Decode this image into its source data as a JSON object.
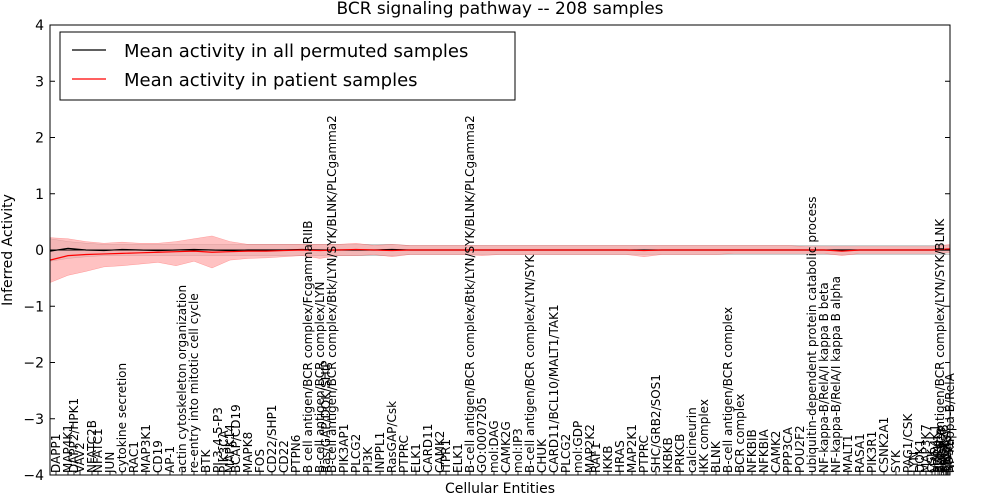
{
  "chart_data": {
    "type": "line",
    "title": "BCR signaling pathway -- 208 samples",
    "xlabel": "Cellular Entities",
    "ylabel": "Inferred Activity",
    "ylim": [
      -4,
      4
    ],
    "yticks": [
      -4,
      -3,
      -2,
      -1,
      0,
      1,
      2,
      3,
      4
    ],
    "grid": false,
    "legend_position": "top-left",
    "colors": {
      "permuted": "#000000",
      "patient": "#ff0000",
      "patient_band": "#ff9999",
      "permuted_band": "#bfbfbf"
    },
    "x_range": [
      0,
      150
    ],
    "tick_labels": [
      {
        "x": 1,
        "label": "DAPP1"
      },
      {
        "x": 3,
        "label": "MAP4K1"
      },
      {
        "x": 4,
        "label": "DAPP2/HPK1"
      },
      {
        "x": 5,
        "label": "VAV2"
      },
      {
        "x": 7,
        "label": "NFATC2B"
      },
      {
        "x": 8,
        "label": "NFATC1"
      },
      {
        "x": 10,
        "label": "JUN"
      },
      {
        "x": 12,
        "label": "cytokine secretion"
      },
      {
        "x": 14,
        "label": "RAC1"
      },
      {
        "x": 16,
        "label": "MAP3K1"
      },
      {
        "x": 18,
        "label": "CD19"
      },
      {
        "x": 20,
        "label": "AP-1"
      },
      {
        "x": 22,
        "label": "actin cytoskeleton organization"
      },
      {
        "x": 24,
        "label": "re-entry into mitotic cell cycle"
      },
      {
        "x": 26,
        "label": "BTK"
      },
      {
        "x": 28,
        "label": "PI-3-4-5-P3"
      },
      {
        "x": 29,
        "label": "PIK3CA"
      },
      {
        "x": 30,
        "label": "MAPK14"
      },
      {
        "x": 31,
        "label": "BCAP/CD19"
      },
      {
        "x": 33,
        "label": "MAPK8"
      },
      {
        "x": 35,
        "label": "FOS"
      },
      {
        "x": 37,
        "label": "CD22/SHP1"
      },
      {
        "x": 39,
        "label": "CD22"
      },
      {
        "x": 41,
        "label": "PTPN6"
      },
      {
        "x": 43,
        "label": "B cell antigen/BCR complex/FcgammaRIIB"
      },
      {
        "x": 45,
        "label": "B-cell antigen/BCR complex/LYN"
      },
      {
        "x": 46,
        "label": "Ras/GAP/DOK/SHIP"
      },
      {
        "x": 47,
        "label": "B-cell antigen/BCR complex/Btk/LYN/SYK/BLNK/PLCgamma2"
      },
      {
        "x": 49,
        "label": "PIK3AP1"
      },
      {
        "x": 51,
        "label": "PLCG2"
      },
      {
        "x": 53,
        "label": "PI3K"
      },
      {
        "x": 55,
        "label": "INPPL1"
      },
      {
        "x": 57,
        "label": "RasGAP/Csk"
      },
      {
        "x": 59,
        "label": "PTPRC"
      },
      {
        "x": 61,
        "label": "ELK1"
      },
      {
        "x": 63,
        "label": "CARD11"
      },
      {
        "x": 65,
        "label": "CAMK2"
      },
      {
        "x": 66,
        "label": "ITPR1"
      },
      {
        "x": 68,
        "label": "ELK1"
      },
      {
        "x": 70,
        "label": "B-cell antigen/BCR complex/Btk/LYN/SYK/BLNK/PLCgamma2"
      },
      {
        "x": 72,
        "label": "GO:0007205"
      },
      {
        "x": 74,
        "label": "mol:DAG"
      },
      {
        "x": 76,
        "label": "CAMK2G"
      },
      {
        "x": 78,
        "label": "mol:IP3"
      },
      {
        "x": 80,
        "label": "B-cell antigen/BCR complex/LYN/SYK"
      },
      {
        "x": 82,
        "label": "CHUK"
      },
      {
        "x": 84,
        "label": "CARD11/BCL10/MALT1/TAK1"
      },
      {
        "x": 86,
        "label": "PLCG2"
      },
      {
        "x": 88,
        "label": "mol:GDP"
      },
      {
        "x": 90,
        "label": "MAP2K2"
      },
      {
        "x": 91,
        "label": "RAF1"
      },
      {
        "x": 93,
        "label": "IKKB"
      },
      {
        "x": 95,
        "label": "HRAS"
      },
      {
        "x": 97,
        "label": "MAP2K1"
      },
      {
        "x": 99,
        "label": "PTPRC"
      },
      {
        "x": 101,
        "label": "SHC/GRB2/SOS1"
      },
      {
        "x": 103,
        "label": "IKBKB"
      },
      {
        "x": 105,
        "label": "PRKCB"
      },
      {
        "x": 107,
        "label": "calcineurin"
      },
      {
        "x": 109,
        "label": "IKK complex"
      },
      {
        "x": 111,
        "label": "BLNK"
      },
      {
        "x": 113,
        "label": "B-cell antigen/BCR complex"
      },
      {
        "x": 115,
        "label": "BCR complex"
      },
      {
        "x": 117,
        "label": "NFKBIB"
      },
      {
        "x": 119,
        "label": "NFKBIA"
      },
      {
        "x": 121,
        "label": "CAMK2"
      },
      {
        "x": 123,
        "label": "PPP3CA"
      },
      {
        "x": 125,
        "label": "POU2F2"
      },
      {
        "x": 127,
        "label": "ubiquitin-dependent protein catabolic process"
      },
      {
        "x": 129,
        "label": "NF-kappa-B/RelA/I kappa B beta"
      },
      {
        "x": 131,
        "label": "NF-kappa-B/RelA/I kappa B alpha"
      },
      {
        "x": 133,
        "label": "MALT1"
      },
      {
        "x": 135,
        "label": "RASA1"
      },
      {
        "x": 137,
        "label": "PIK3R1"
      },
      {
        "x": 139,
        "label": "CSNK2A1"
      },
      {
        "x": 141,
        "label": "SYK"
      },
      {
        "x": 143,
        "label": "PAG1/CSK"
      },
      {
        "x": 144,
        "label": "LYN"
      },
      {
        "x": 145,
        "label": "DOK1"
      },
      {
        "x": 146,
        "label": "MAP3K7"
      },
      {
        "x": 147,
        "label": "CSK"
      },
      {
        "x": 147.5,
        "label": "MAP4K1"
      },
      {
        "x": 148,
        "label": "PDPK1"
      },
      {
        "x": 148.3,
        "label": "B-cell antigen/BCR complex/LYN/SYK/BLNK"
      },
      {
        "x": 148.6,
        "label": "PPP3CB"
      },
      {
        "x": 148.9,
        "label": "FCGR2B"
      },
      {
        "x": 149.2,
        "label": "SHC1"
      },
      {
        "x": 149.4,
        "label": "PIK3CA"
      },
      {
        "x": 149.6,
        "label": "TRAF6"
      },
      {
        "x": 149.8,
        "label": "SOS1"
      },
      {
        "x": 150,
        "label": "NF-kappa-B/RelA"
      }
    ],
    "series": [
      {
        "name": "Mean activity in all permuted samples",
        "color": "#000000",
        "x": [
          0,
          3,
          6,
          9,
          12,
          15,
          18,
          21,
          24,
          27,
          30,
          33,
          36,
          39,
          42,
          45,
          48,
          51,
          54,
          57,
          60,
          63,
          66,
          69,
          72,
          75,
          78,
          81,
          84,
          87,
          90,
          93,
          96,
          99,
          102,
          105,
          108,
          111,
          114,
          117,
          120,
          123,
          126,
          129,
          132,
          135,
          138,
          141,
          144,
          147,
          150
        ],
        "values": [
          -0.02,
          0.03,
          0.0,
          -0.01,
          0.01,
          0.0,
          -0.01,
          0.0,
          0.01,
          0.0,
          -0.01,
          0.0,
          0.0,
          0.0,
          0.01,
          0.0,
          0.0,
          0.0,
          0.0,
          0.01,
          0.0,
          0.0,
          0.0,
          0.0,
          0.0,
          0.0,
          0.0,
          0.0,
          0.0,
          0.0,
          0.0,
          0.0,
          0.0,
          0.0,
          0.0,
          0.0,
          0.0,
          0.0,
          0.0,
          0.0,
          0.0,
          0.0,
          0.0,
          0.0,
          0.0,
          0.0,
          0.0,
          0.0,
          0.0,
          0.0,
          0.0
        ],
        "band_low": [
          -0.2,
          -0.15,
          -0.12,
          -0.1,
          -0.1,
          -0.1,
          -0.1,
          -0.1,
          -0.1,
          -0.1,
          -0.1,
          -0.1,
          -0.1,
          -0.1,
          -0.1,
          -0.1,
          -0.1,
          -0.1,
          -0.1,
          -0.1,
          -0.08,
          -0.08,
          -0.08,
          -0.08,
          -0.08,
          -0.08,
          -0.08,
          -0.08,
          -0.08,
          -0.08,
          -0.08,
          -0.08,
          -0.08,
          -0.08,
          -0.08,
          -0.08,
          -0.08,
          -0.08,
          -0.08,
          -0.08,
          -0.08,
          -0.08,
          -0.08,
          -0.08,
          -0.08,
          -0.08,
          -0.08,
          -0.08,
          -0.08,
          -0.08,
          -0.08
        ],
        "band_high": [
          0.2,
          0.15,
          0.12,
          0.1,
          0.1,
          0.1,
          0.1,
          0.1,
          0.1,
          0.1,
          0.1,
          0.1,
          0.1,
          0.1,
          0.1,
          0.1,
          0.1,
          0.1,
          0.1,
          0.1,
          0.08,
          0.08,
          0.08,
          0.08,
          0.08,
          0.08,
          0.08,
          0.08,
          0.08,
          0.08,
          0.08,
          0.08,
          0.08,
          0.08,
          0.08,
          0.08,
          0.08,
          0.08,
          0.08,
          0.08,
          0.08,
          0.08,
          0.08,
          0.08,
          0.08,
          0.08,
          0.08,
          0.08,
          0.08,
          0.08,
          0.08
        ]
      },
      {
        "name": "Mean activity in patient samples",
        "color": "#ff0000",
        "x": [
          0,
          3,
          6,
          9,
          12,
          15,
          18,
          21,
          24,
          27,
          30,
          33,
          36,
          39,
          42,
          45,
          48,
          51,
          54,
          57,
          60,
          63,
          66,
          69,
          72,
          75,
          78,
          81,
          84,
          87,
          90,
          93,
          96,
          99,
          102,
          105,
          108,
          111,
          114,
          117,
          120,
          123,
          126,
          129,
          132,
          135,
          138,
          141,
          144,
          147,
          150
        ],
        "values": [
          -0.18,
          -0.1,
          -0.08,
          -0.07,
          -0.06,
          -0.05,
          -0.04,
          -0.03,
          -0.02,
          -0.04,
          -0.03,
          -0.02,
          -0.02,
          -0.01,
          0.0,
          -0.01,
          0.0,
          0.01,
          0.0,
          -0.01,
          0.0,
          0.0,
          0.0,
          0.0,
          0.0,
          0.0,
          0.0,
          0.0,
          0.0,
          0.0,
          0.0,
          0.0,
          0.0,
          -0.01,
          0.0,
          0.0,
          0.0,
          0.0,
          0.0,
          0.0,
          0.0,
          0.0,
          0.0,
          0.0,
          -0.02,
          0.0,
          0.0,
          0.0,
          0.0,
          0.0,
          0.02
        ],
        "band_low": [
          -0.58,
          -0.45,
          -0.38,
          -0.3,
          -0.28,
          -0.25,
          -0.22,
          -0.28,
          -0.2,
          -0.32,
          -0.18,
          -0.15,
          -0.14,
          -0.12,
          -0.1,
          -0.15,
          -0.1,
          -0.1,
          -0.08,
          -0.12,
          -0.08,
          -0.08,
          -0.08,
          -0.08,
          -0.1,
          -0.08,
          -0.08,
          -0.08,
          -0.08,
          -0.08,
          -0.08,
          -0.08,
          -0.08,
          -0.12,
          -0.08,
          -0.08,
          -0.08,
          -0.08,
          -0.06,
          -0.06,
          -0.06,
          -0.06,
          -0.06,
          -0.06,
          -0.1,
          -0.06,
          -0.06,
          -0.06,
          -0.06,
          -0.06,
          -0.04
        ],
        "band_high": [
          0.22,
          0.2,
          0.15,
          0.12,
          0.14,
          0.12,
          0.12,
          0.15,
          0.2,
          0.25,
          0.15,
          0.1,
          0.1,
          0.1,
          0.1,
          0.1,
          0.1,
          0.12,
          0.08,
          0.1,
          0.08,
          0.08,
          0.08,
          0.08,
          0.08,
          0.08,
          0.08,
          0.08,
          0.08,
          0.08,
          0.08,
          0.08,
          0.08,
          0.08,
          0.08,
          0.08,
          0.08,
          0.08,
          0.08,
          0.08,
          0.08,
          0.08,
          0.06,
          0.06,
          0.06,
          0.06,
          0.06,
          0.06,
          0.06,
          0.06,
          0.1
        ]
      }
    ]
  }
}
